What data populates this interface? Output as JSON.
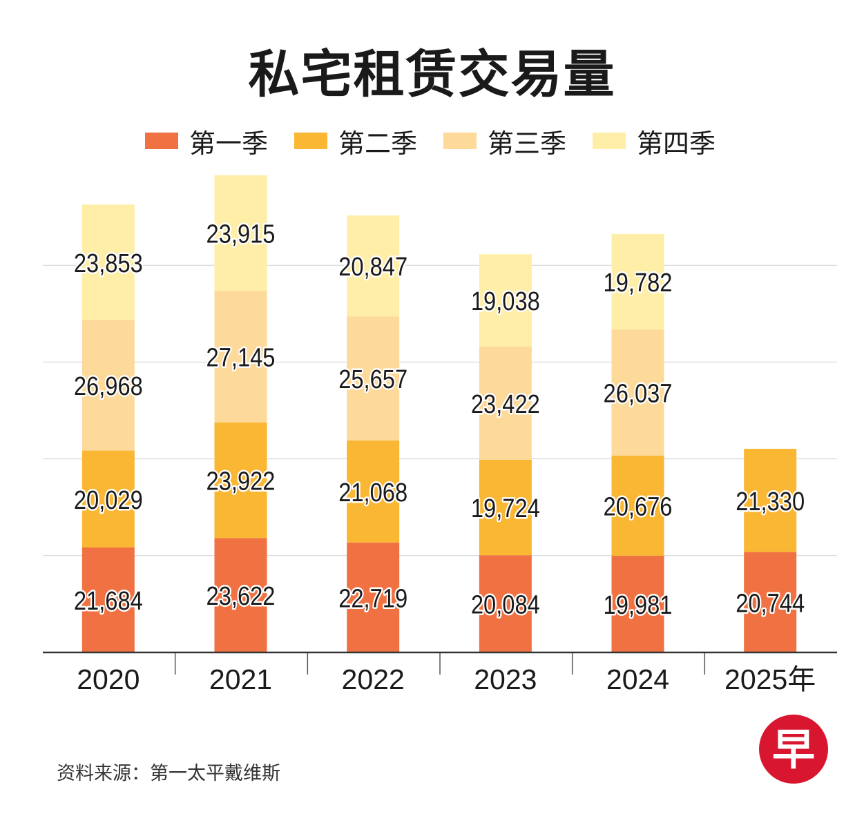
{
  "title": "私宅租赁交易量",
  "legend": [
    {
      "label": "第一季",
      "color": "#F07142"
    },
    {
      "label": "第二季",
      "color": "#FAB734"
    },
    {
      "label": "第三季",
      "color": "#FDD99A"
    },
    {
      "label": "第四季",
      "color": "#FEEEA8"
    }
  ],
  "source": "资料来源：第一太平戴维斯",
  "logo": {
    "text": "早",
    "color": "#D9162F",
    "icon": "zaobao-logo-icon"
  },
  "chart_data": {
    "type": "bar",
    "stacked": true,
    "title": "私宅租赁交易量",
    "categories": [
      "2020",
      "2021",
      "2022",
      "2023",
      "2024",
      "2025年"
    ],
    "series": [
      {
        "name": "第一季",
        "values": [
          21684,
          23622,
          22719,
          20084,
          19981,
          20744
        ],
        "labels": [
          "21,684",
          "23,622",
          "22,719",
          "20,084",
          "19,981",
          "20,744"
        ]
      },
      {
        "name": "第二季",
        "values": [
          20029,
          23922,
          21068,
          19724,
          20676,
          21330
        ],
        "labels": [
          "20,029",
          "23,922",
          "21,068",
          "19,724",
          "20,676",
          "21,330"
        ]
      },
      {
        "name": "第三季",
        "values": [
          26968,
          27145,
          25657,
          23422,
          26037,
          null
        ],
        "labels": [
          "26,968",
          "27,145",
          "25,657",
          "23,422",
          "26,037",
          ""
        ]
      },
      {
        "name": "第四季",
        "values": [
          23853,
          23915,
          20847,
          19038,
          19782,
          null
        ],
        "labels": [
          "23,853",
          "23,915",
          "20,847",
          "19,038",
          "19,782",
          ""
        ]
      }
    ],
    "ylim": [
      0,
      100000
    ],
    "grid": true,
    "legend_position": "top"
  }
}
